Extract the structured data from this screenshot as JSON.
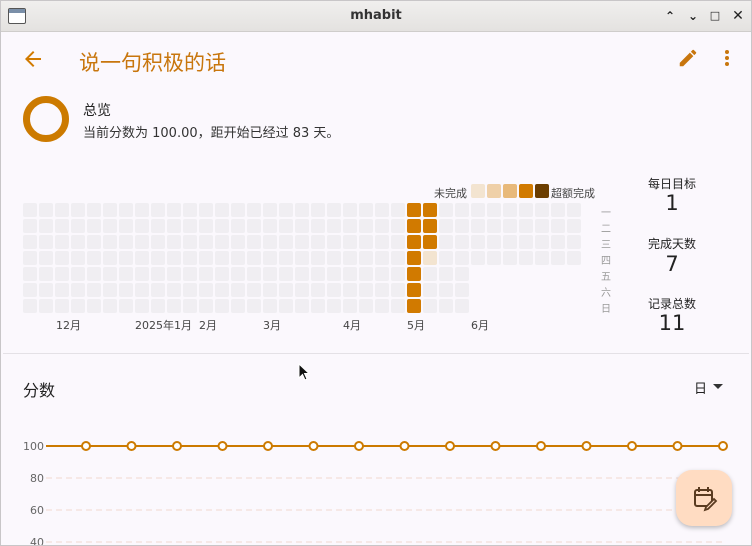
{
  "window": {
    "title": "mhabit"
  },
  "appbar": {
    "title": "说一句积极的话"
  },
  "overview": {
    "title": "总览",
    "description": "当前分数为 100.00，距开始已经过 83 天。"
  },
  "legend": {
    "incomplete": "未完成",
    "over": "超额完成"
  },
  "weekdays": [
    "一",
    "二",
    "三",
    "四",
    "五",
    "六",
    "日"
  ],
  "months": [
    "12月",
    "2025年1月",
    "2月",
    "3月",
    "4月",
    "5月",
    "6月"
  ],
  "stats": {
    "daily_goal_label": "每日目标",
    "daily_goal_value": "1",
    "completed_days_label": "完成天数",
    "completed_days_value": "7",
    "total_records_label": "记录总数",
    "total_records_value": "11"
  },
  "score": {
    "title": "分数",
    "period": "日"
  },
  "chart_data": {
    "type": "line",
    "title": "分数",
    "y_ticks": [
      "100",
      "80",
      "60",
      "40"
    ],
    "series": [
      {
        "values": [
          100,
          100,
          100,
          100,
          100,
          100,
          100,
          100,
          100,
          100,
          100,
          100,
          100,
          100,
          100
        ]
      }
    ]
  },
  "colors": {
    "accent": "#cc7a00",
    "title": "#c8760d",
    "fab": "#ffdcc2"
  },
  "icons": {
    "back": "arrow-back-icon",
    "edit": "pencil-icon",
    "more": "more-vert-icon",
    "fab": "calendar-edit-icon"
  }
}
